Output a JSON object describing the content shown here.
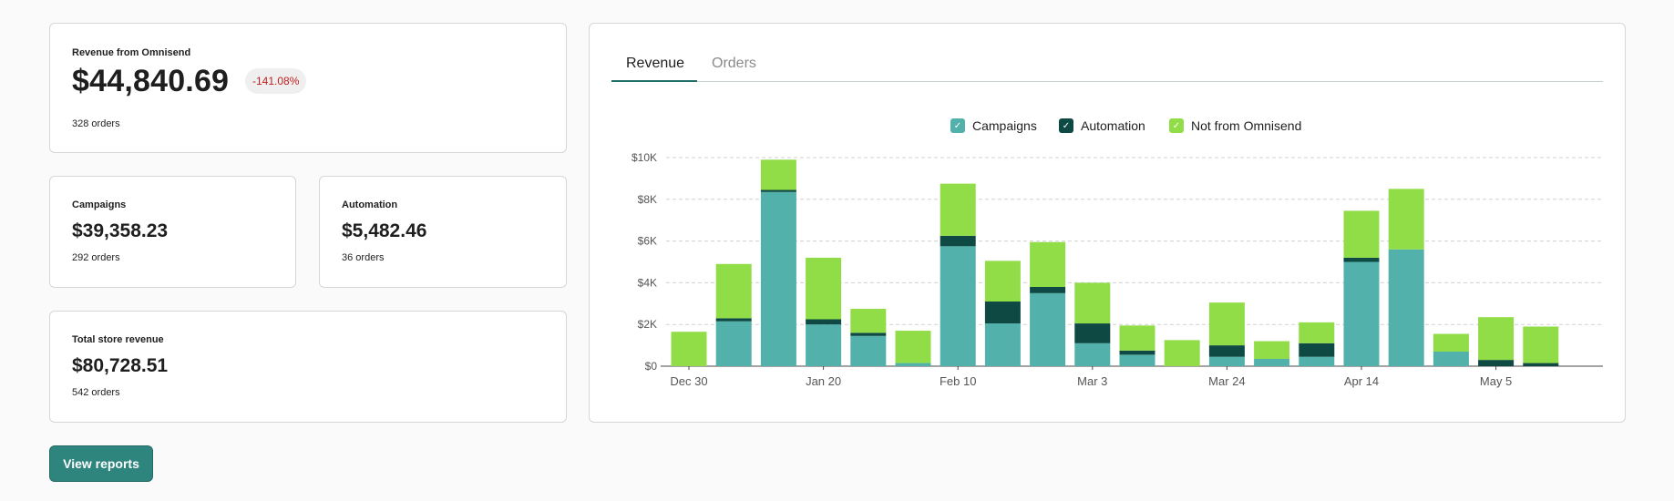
{
  "summary": {
    "omnisend": {
      "label": "Revenue from Omnisend",
      "value": "$44,840.69",
      "change": "-141.08%",
      "orders_count": "328",
      "orders_suffix": " orders"
    },
    "campaigns": {
      "label": "Campaigns",
      "value": "$39,358.23",
      "orders_count": "292",
      "orders_suffix": " orders"
    },
    "automation": {
      "label": "Automation",
      "value": "$5,482.46",
      "orders_count": "36",
      "orders_suffix": " orders"
    },
    "total": {
      "label": "Total store revenue",
      "value": "$80,728.51",
      "orders_count": "542",
      "orders_suffix": " orders"
    }
  },
  "view_reports_label": "View reports",
  "tabs": [
    {
      "label": "Revenue",
      "active": true
    },
    {
      "label": "Orders",
      "active": false
    }
  ],
  "legend": [
    {
      "label": "Campaigns",
      "color": "#52b1aa",
      "icon": "check-icon"
    },
    {
      "label": "Automation",
      "color": "#0e4a43",
      "icon": "check-icon"
    },
    {
      "label": "Not from Omnisend",
      "color": "#91dd47",
      "icon": "check-icon"
    }
  ],
  "chart_data": {
    "type": "bar",
    "stacked": true,
    "y_ticks": [
      "$0",
      "$2K",
      "$4K",
      "$6K",
      "$8K",
      "$10K"
    ],
    "ylim": [
      0,
      10000
    ],
    "x_tick_labels": [
      "Dec 30",
      "Jan 20",
      "Feb 10",
      "Mar 3",
      "Mar 24",
      "Apr 14",
      "May 5"
    ],
    "grid": true,
    "legend_position": "top",
    "series": [
      {
        "name": "Campaigns",
        "color": "#52b1aa",
        "values": [
          0,
          2150,
          8350,
          2000,
          1450,
          150,
          5750,
          2050,
          3500,
          1100,
          550,
          0,
          450,
          350,
          450,
          5000,
          5600,
          700,
          0,
          0
        ]
      },
      {
        "name": "Automation",
        "color": "#0e4a43",
        "values": [
          0,
          150,
          100,
          250,
          150,
          0,
          500,
          1050,
          300,
          950,
          200,
          0,
          550,
          0,
          650,
          200,
          0,
          0,
          300,
          150
        ]
      },
      {
        "name": "Not from Omnisend",
        "color": "#91dd47",
        "values": [
          1650,
          2600,
          1450,
          2950,
          1150,
          1550,
          2500,
          1950,
          2150,
          1950,
          1200,
          1250,
          2050,
          850,
          1000,
          2250,
          2900,
          850,
          2050,
          1750
        ]
      }
    ]
  }
}
